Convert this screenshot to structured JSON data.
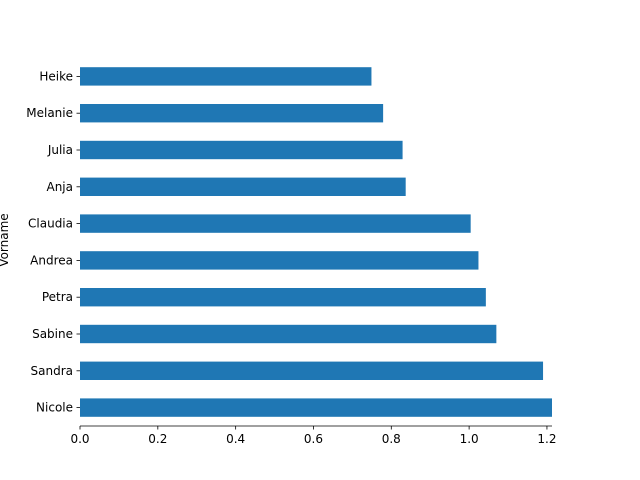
{
  "chart_data": {
    "type": "bar",
    "orientation": "horizontal",
    "categories": [
      "Nicole",
      "Sandra",
      "Sabine",
      "Petra",
      "Andrea",
      "Claudia",
      "Anja",
      "Julia",
      "Melanie",
      "Heike"
    ],
    "values": [
      1.213,
      1.19,
      1.07,
      1.043,
      1.024,
      1.004,
      0.837,
      0.829,
      0.779,
      0.749
    ],
    "title": "",
    "xlabel": "",
    "ylabel": "Vorname",
    "xlim": [
      0,
      1.213
    ],
    "xticks": [
      "0.0",
      "0.2",
      "0.4",
      "0.6",
      "0.8",
      "1.0",
      "1.2"
    ],
    "grid": false,
    "legend": "none",
    "colors": {
      "bar": "#1f77b4",
      "axis": "#000000",
      "background": "#ffffff"
    }
  }
}
